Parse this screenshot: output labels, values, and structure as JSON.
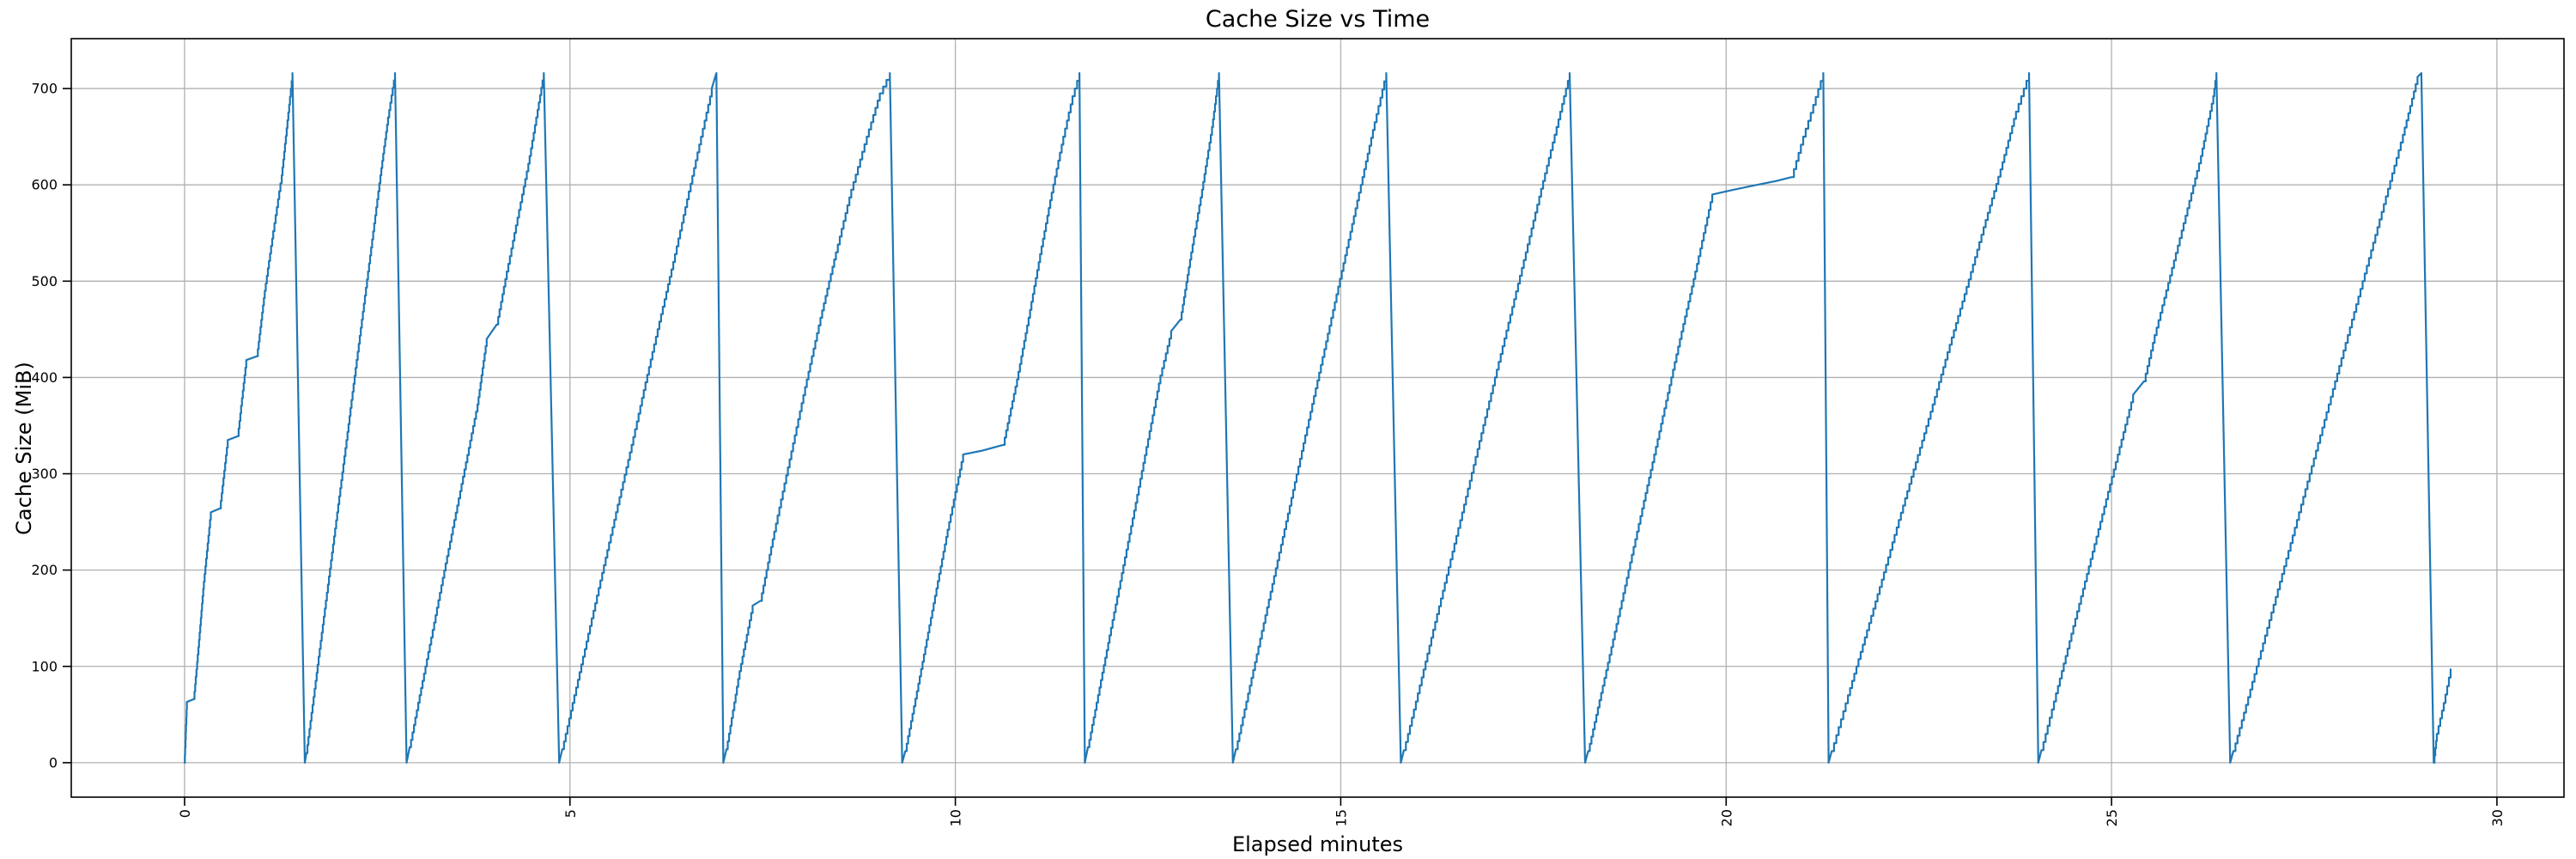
{
  "chart_data": {
    "type": "line",
    "title": "Cache Size vs Time",
    "xlabel": "Elapsed minutes",
    "ylabel": "Cache Size (MiB)",
    "xlim": [
      -1.47,
      30.87
    ],
    "ylim": [
      -35.8,
      751.8
    ],
    "xticks": [
      0,
      5,
      10,
      15,
      20,
      25,
      30
    ],
    "xtick_labels": [
      "0",
      "5",
      "10",
      "15",
      "20",
      "25",
      "30"
    ],
    "x_tick_rotation_deg": 90,
    "yticks": [
      0,
      100,
      200,
      300,
      400,
      500,
      600,
      700
    ],
    "ytick_labels": [
      "0",
      "100",
      "200",
      "300",
      "400",
      "500",
      "600",
      "700"
    ],
    "grid": true,
    "legend": "none",
    "interpolation": "staircase",
    "colors": {
      "line": "#1f77b4",
      "grid": "#b0b0b0",
      "spine": "#000000",
      "background": "#ffffff",
      "text": "#000000"
    },
    "series": [
      {
        "name": "Cache Size",
        "points": [
          [
            0,
            0
          ],
          [
            0.03,
            63
          ],
          [
            0.12,
            66
          ],
          [
            0.18,
            120
          ],
          [
            0.25,
            188
          ],
          [
            0.34,
            260
          ],
          [
            0.46,
            264
          ],
          [
            0.56,
            335
          ],
          [
            0.69,
            339
          ],
          [
            0.8,
            418
          ],
          [
            0.94,
            422
          ],
          [
            1.04,
            490
          ],
          [
            1.15,
            552
          ],
          [
            1.26,
            610
          ],
          [
            1.4,
            716
          ],
          [
            1.56,
            0
          ],
          [
            1.58,
            10
          ],
          [
            1.7,
            85
          ],
          [
            1.82,
            160
          ],
          [
            1.94,
            235
          ],
          [
            2.06,
            310
          ],
          [
            2.18,
            385
          ],
          [
            2.3,
            460
          ],
          [
            2.42,
            535
          ],
          [
            2.54,
            610
          ],
          [
            2.64,
            670
          ],
          [
            2.73,
            716
          ],
          [
            2.88,
            0
          ],
          [
            2.92,
            16
          ],
          [
            3.05,
            70
          ],
          [
            3.2,
            130
          ],
          [
            3.35,
            192
          ],
          [
            3.5,
            252
          ],
          [
            3.65,
            312
          ],
          [
            3.8,
            372
          ],
          [
            3.92,
            440
          ],
          [
            4.05,
            455
          ],
          [
            4.18,
            510
          ],
          [
            4.32,
            566
          ],
          [
            4.46,
            622
          ],
          [
            4.58,
            678
          ],
          [
            4.66,
            716
          ],
          [
            4.86,
            0
          ],
          [
            4.9,
            14
          ],
          [
            5.08,
            78
          ],
          [
            5.26,
            142
          ],
          [
            5.44,
            205
          ],
          [
            5.62,
            268
          ],
          [
            5.8,
            330
          ],
          [
            5.98,
            395
          ],
          [
            6.16,
            458
          ],
          [
            6.34,
            520
          ],
          [
            6.52,
            585
          ],
          [
            6.7,
            650
          ],
          [
            6.84,
            700
          ],
          [
            6.9,
            716
          ],
          [
            6.99,
            0
          ],
          [
            7.03,
            14
          ],
          [
            7.2,
            95
          ],
          [
            7.37,
            163
          ],
          [
            7.47,
            168
          ],
          [
            7.65,
            240
          ],
          [
            7.85,
            315
          ],
          [
            8.05,
            390
          ],
          [
            8.25,
            462
          ],
          [
            8.45,
            530
          ],
          [
            8.65,
            595
          ],
          [
            8.85,
            650
          ],
          [
            9.02,
            695
          ],
          [
            9.15,
            716
          ],
          [
            9.31,
            0
          ],
          [
            9.35,
            12
          ],
          [
            9.52,
            82
          ],
          [
            9.7,
            158
          ],
          [
            9.9,
            242
          ],
          [
            10.1,
            320
          ],
          [
            10.35,
            324
          ],
          [
            10.62,
            330
          ],
          [
            10.8,
            398
          ],
          [
            10.95,
            462
          ],
          [
            11.1,
            528
          ],
          [
            11.25,
            592
          ],
          [
            11.4,
            650
          ],
          [
            11.52,
            692
          ],
          [
            11.61,
            716
          ],
          [
            11.68,
            0
          ],
          [
            11.72,
            16
          ],
          [
            11.87,
            78
          ],
          [
            12.02,
            140
          ],
          [
            12.18,
            205
          ],
          [
            12.34,
            270
          ],
          [
            12.5,
            336
          ],
          [
            12.66,
            402
          ],
          [
            12.8,
            448
          ],
          [
            12.92,
            460
          ],
          [
            13.06,
            530
          ],
          [
            13.2,
            595
          ],
          [
            13.33,
            660
          ],
          [
            13.42,
            716
          ],
          [
            13.6,
            0
          ],
          [
            13.64,
            14
          ],
          [
            13.82,
            80
          ],
          [
            14.0,
            145
          ],
          [
            14.18,
            210
          ],
          [
            14.36,
            275
          ],
          [
            14.54,
            340
          ],
          [
            14.72,
            405
          ],
          [
            14.9,
            470
          ],
          [
            15.08,
            535
          ],
          [
            15.26,
            600
          ],
          [
            15.44,
            665
          ],
          [
            15.59,
            716
          ],
          [
            15.78,
            0
          ],
          [
            15.82,
            13
          ],
          [
            16.0,
            72
          ],
          [
            16.2,
            138
          ],
          [
            16.4,
            203
          ],
          [
            16.6,
            268
          ],
          [
            16.8,
            334
          ],
          [
            17.0,
            400
          ],
          [
            17.2,
            465
          ],
          [
            17.4,
            530
          ],
          [
            17.6,
            596
          ],
          [
            17.8,
            660
          ],
          [
            17.97,
            716
          ],
          [
            18.17,
            0
          ],
          [
            18.21,
            12
          ],
          [
            18.4,
            80
          ],
          [
            18.6,
            152
          ],
          [
            18.8,
            224
          ],
          [
            19.0,
            296
          ],
          [
            19.2,
            368
          ],
          [
            19.4,
            440
          ],
          [
            19.6,
            510
          ],
          [
            19.82,
            590
          ],
          [
            20.1,
            595
          ],
          [
            20.4,
            600
          ],
          [
            20.65,
            604
          ],
          [
            20.85,
            608
          ],
          [
            21.0,
            650
          ],
          [
            21.26,
            716
          ],
          [
            21.33,
            0
          ],
          [
            21.37,
            12
          ],
          [
            21.58,
            70
          ],
          [
            21.8,
            130
          ],
          [
            22.02,
            190
          ],
          [
            22.24,
            252
          ],
          [
            22.46,
            312
          ],
          [
            22.68,
            372
          ],
          [
            22.9,
            434
          ],
          [
            23.12,
            494
          ],
          [
            23.34,
            556
          ],
          [
            23.56,
            616
          ],
          [
            23.76,
            676
          ],
          [
            23.93,
            716
          ],
          [
            24.05,
            0
          ],
          [
            24.09,
            13
          ],
          [
            24.28,
            72
          ],
          [
            24.48,
            134
          ],
          [
            24.68,
            196
          ],
          [
            24.88,
            258
          ],
          [
            25.08,
            320
          ],
          [
            25.28,
            382
          ],
          [
            25.42,
            396
          ],
          [
            25.56,
            444
          ],
          [
            25.76,
            506
          ],
          [
            25.96,
            568
          ],
          [
            26.16,
            630
          ],
          [
            26.32,
            692
          ],
          [
            26.36,
            716
          ],
          [
            26.54,
            0
          ],
          [
            26.58,
            12
          ],
          [
            26.8,
            76
          ],
          [
            27.02,
            140
          ],
          [
            27.24,
            204
          ],
          [
            27.46,
            268
          ],
          [
            27.68,
            332
          ],
          [
            27.9,
            396
          ],
          [
            28.12,
            460
          ],
          [
            28.34,
            524
          ],
          [
            28.56,
            588
          ],
          [
            28.78,
            652
          ],
          [
            28.97,
            712
          ],
          [
            29.02,
            716
          ],
          [
            29.18,
            0
          ],
          [
            29.22,
            30
          ],
          [
            29.31,
            62
          ],
          [
            29.4,
            97
          ]
        ]
      }
    ]
  }
}
